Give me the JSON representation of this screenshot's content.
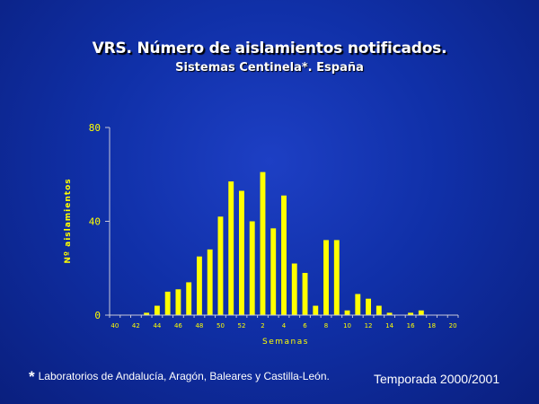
{
  "chart_data": {
    "type": "bar",
    "title": "VRS. Número de aislamientos notificados.",
    "subtitle": "Sistemas Centinela*. España",
    "xlabel": "Semanas",
    "ylabel": "Nº aislamientos",
    "ylim": [
      0,
      80
    ],
    "y_ticks": [
      "0",
      "40",
      "80"
    ],
    "grid": false,
    "legend": "none",
    "bar_color": "#ffff00",
    "categories": [
      "40",
      "41",
      "42",
      "43",
      "44",
      "45",
      "46",
      "47",
      "48",
      "49",
      "50",
      "51",
      "52",
      "1",
      "2",
      "3",
      "4",
      "5",
      "6",
      "7",
      "8",
      "9",
      "10",
      "11",
      "12",
      "13",
      "14",
      "15",
      "16",
      "17",
      "18",
      "19",
      "20"
    ],
    "x_tick_labels": [
      "40",
      "",
      "42",
      "",
      "44",
      "",
      "46",
      "",
      "48",
      "",
      "50",
      "",
      "52",
      "",
      "2",
      "",
      "4",
      "",
      "6",
      "",
      "8",
      "",
      "10",
      "",
      "12",
      "",
      "14",
      "",
      "16",
      "",
      "18",
      "",
      "20"
    ],
    "values": [
      0,
      0,
      0,
      1,
      4,
      10,
      11,
      14,
      25,
      28,
      42,
      57,
      53,
      40,
      61,
      37,
      51,
      22,
      18,
      4,
      32,
      32,
      2,
      9,
      7,
      4,
      1,
      0,
      1,
      2,
      0,
      0,
      0
    ]
  },
  "footnote": {
    "star": "*",
    "text": "Laboratorios de Andalucía, Aragón, Baleares y  Castilla-León."
  },
  "season": "Temporada 2000/2001"
}
